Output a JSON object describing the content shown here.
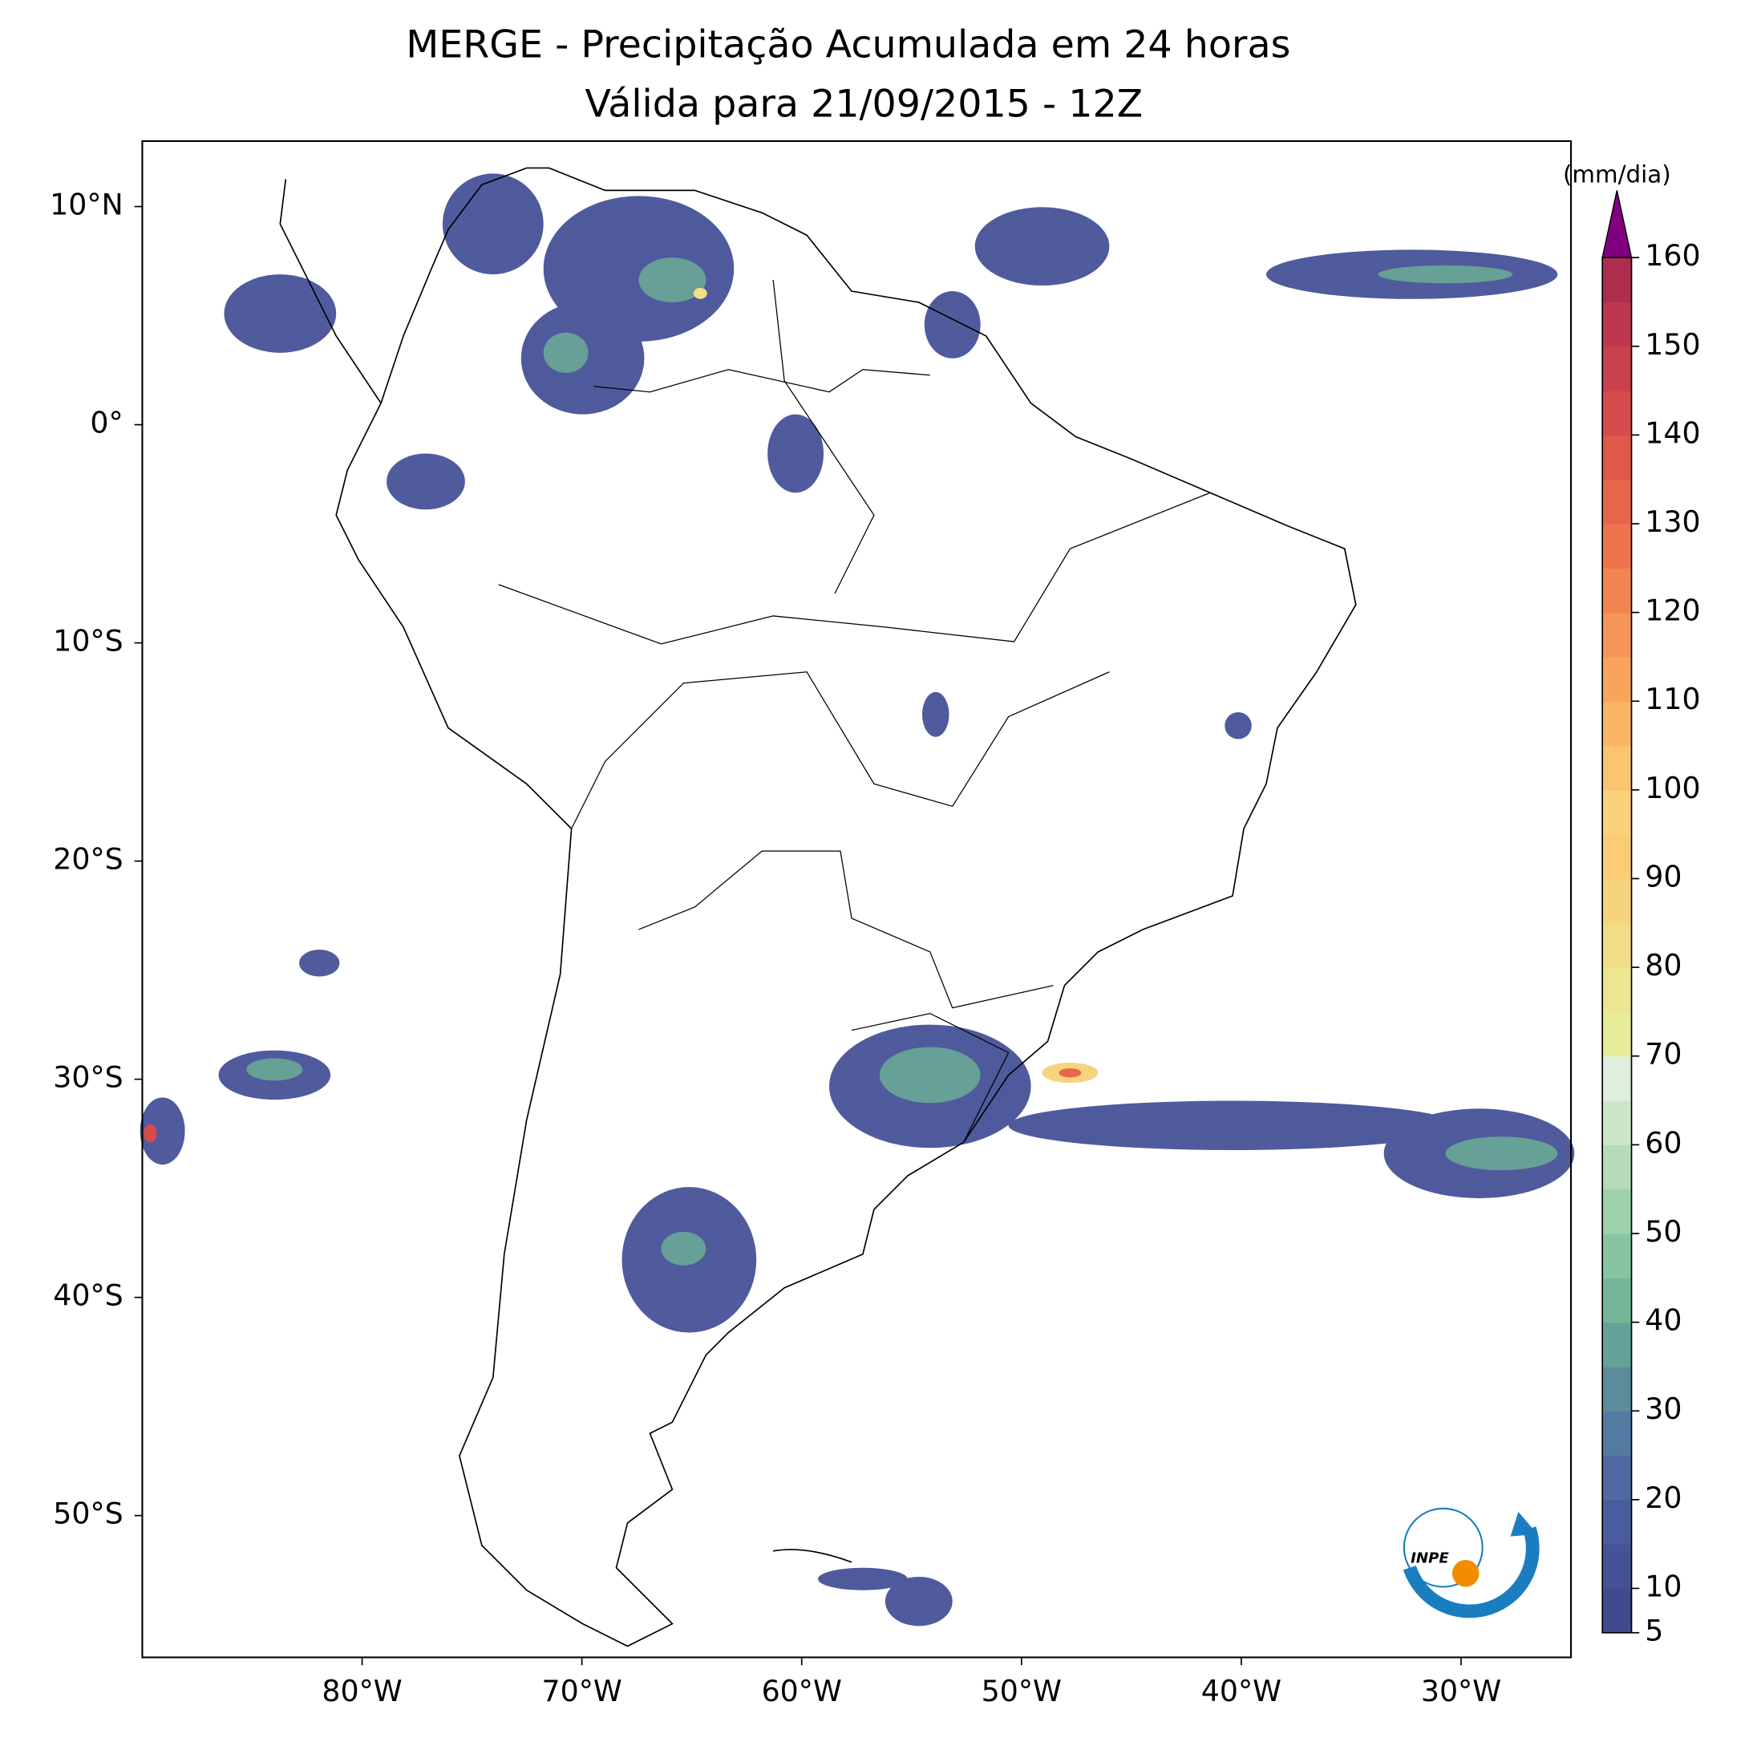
{
  "chart_data": {
    "type": "map",
    "title": "MERGE - Precipitação Acumulada em 24 horas",
    "subtitle": "Válida para 21/09/2015 - 12Z",
    "xlim": [
      -90,
      -25
    ],
    "ylim": [
      -56.5,
      13
    ],
    "xticks": [
      {
        "value": -80,
        "label": "80°W"
      },
      {
        "value": -70,
        "label": "70°W"
      },
      {
        "value": -60,
        "label": "60°W"
      },
      {
        "value": -50,
        "label": "50°W"
      },
      {
        "value": -40,
        "label": "40°W"
      },
      {
        "value": -30,
        "label": "30°W"
      }
    ],
    "yticks": [
      {
        "value": 10,
        "label": "10°N"
      },
      {
        "value": 0,
        "label": "0°"
      },
      {
        "value": -10,
        "label": "10°S"
      },
      {
        "value": -20,
        "label": "20°S"
      },
      {
        "value": -30,
        "label": "30°S"
      },
      {
        "value": -40,
        "label": "40°S"
      },
      {
        "value": -50,
        "label": "50°S"
      }
    ],
    "colorbar": {
      "label": "(mm/dia)",
      "lim": [
        5,
        160
      ],
      "ticks": [
        5,
        10,
        20,
        30,
        40,
        50,
        60,
        70,
        80,
        90,
        100,
        110,
        120,
        130,
        140,
        150,
        160
      ],
      "colors": [
        "#414a8f",
        "#455298",
        "#495c9f",
        "#4e69a4",
        "#5479a2",
        "#5c8c9c",
        "#65a297",
        "#73b798",
        "#86c5a0",
        "#9ed0ad",
        "#b5dbbb",
        "#cce6cb",
        "#dfeedf",
        "#e6ec98",
        "#ede690",
        "#f2dd86",
        "#f6d47d",
        "#f9cc75",
        "#fbd27b",
        "#fbc46f",
        "#fab565",
        "#f8a45d",
        "#f59457",
        "#f28452",
        "#ee744d",
        "#e8654a",
        "#e05849",
        "#d64c4a",
        "#ca414c",
        "#bd374f",
        "#ad2d4f"
      ],
      "extend_color": "#800080"
    }
  },
  "logo": {
    "text": "INPE"
  }
}
